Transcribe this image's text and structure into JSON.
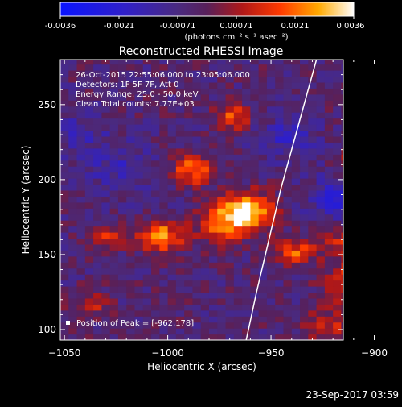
{
  "colorbar": {
    "tick_labels": [
      "-0.0036",
      "-0.0021",
      "-0.00071",
      "0.00071",
      "0.0021",
      "0.0036"
    ],
    "range": [
      -0.0036,
      0.0036
    ],
    "unit_label": "(photons cm⁻² s⁻¹ asec⁻²)"
  },
  "image": {
    "title": "Reconstructed RHESSI Image",
    "info_lines": [
      "26-Oct-2015 22:55:06.000 to 23:05:06.000",
      "Detectors: 1F 5F 7F, Att 0",
      "Energy Range: 25.0 - 50.0 keV",
      "Clean     Total counts: 7.77E+03"
    ],
    "peak_text": "Position of Peak = [-962,178]",
    "timestamp": "23-Sep-2017 03:59"
  },
  "chart_data": {
    "type": "heatmap",
    "title": "Reconstructed RHESSI Image",
    "xlabel": "Heliocentric X (arcsec)",
    "ylabel": "Heliocentric Y (arcsec)",
    "xlim": [
      -1052,
      -915
    ],
    "ylim": [
      93,
      280
    ],
    "xticks": [
      -1050,
      -1000,
      -950,
      -900
    ],
    "xtick_labels": [
      "−1050",
      "−1000",
      "−950",
      "−900"
    ],
    "yticks": [
      100,
      150,
      200,
      250
    ],
    "ytick_labels": [
      "100",
      "150",
      "200",
      "250"
    ],
    "grid": false,
    "value_range": [
      -0.0036,
      0.0036
    ],
    "pixel_size_arcsec": 4,
    "peak": {
      "x": -962,
      "y": 178
    },
    "sources": [
      {
        "x": -962,
        "y": 178,
        "amplitude": 0.0036,
        "sigma": 8
      },
      {
        "x": -975,
        "y": 170,
        "amplitude": 0.0026,
        "sigma": 9
      },
      {
        "x": -1005,
        "y": 160,
        "amplitude": 0.003,
        "sigma": 7
      },
      {
        "x": -990,
        "y": 205,
        "amplitude": 0.0025,
        "sigma": 7
      },
      {
        "x": -970,
        "y": 240,
        "amplitude": 0.0021,
        "sigma": 6
      },
      {
        "x": -1030,
        "y": 160,
        "amplitude": 0.0017,
        "sigma": 6
      },
      {
        "x": -1040,
        "y": 115,
        "amplitude": 0.0014,
        "sigma": 6
      },
      {
        "x": -940,
        "y": 150,
        "amplitude": 0.0023,
        "sigma": 6
      },
      {
        "x": -910,
        "y": 130,
        "amplitude": 0.0023,
        "sigma": 10
      },
      {
        "x": -915,
        "y": 155,
        "amplitude": 0.0016,
        "sigma": 8
      },
      {
        "x": -910,
        "y": 210,
        "amplitude": 0.0017,
        "sigma": 6
      },
      {
        "x": -925,
        "y": 100,
        "amplitude": 0.0015,
        "sigma": 8
      },
      {
        "x": -920,
        "y": 185,
        "amplitude": -0.0015,
        "sigma": 10
      },
      {
        "x": -945,
        "y": 225,
        "amplitude": -0.0012,
        "sigma": 10
      },
      {
        "x": -1025,
        "y": 205,
        "amplitude": -0.001,
        "sigma": 12
      },
      {
        "x": -1045,
        "y": 230,
        "amplitude": -0.0008,
        "sigma": 10
      }
    ],
    "limb_curve": [
      {
        "x": -962,
        "y": 93
      },
      {
        "x": -957,
        "y": 125
      },
      {
        "x": -951,
        "y": 160
      },
      {
        "x": -945,
        "y": 195
      },
      {
        "x": -938,
        "y": 230
      },
      {
        "x": -931,
        "y": 265
      },
      {
        "x": -928,
        "y": 280
      }
    ]
  }
}
